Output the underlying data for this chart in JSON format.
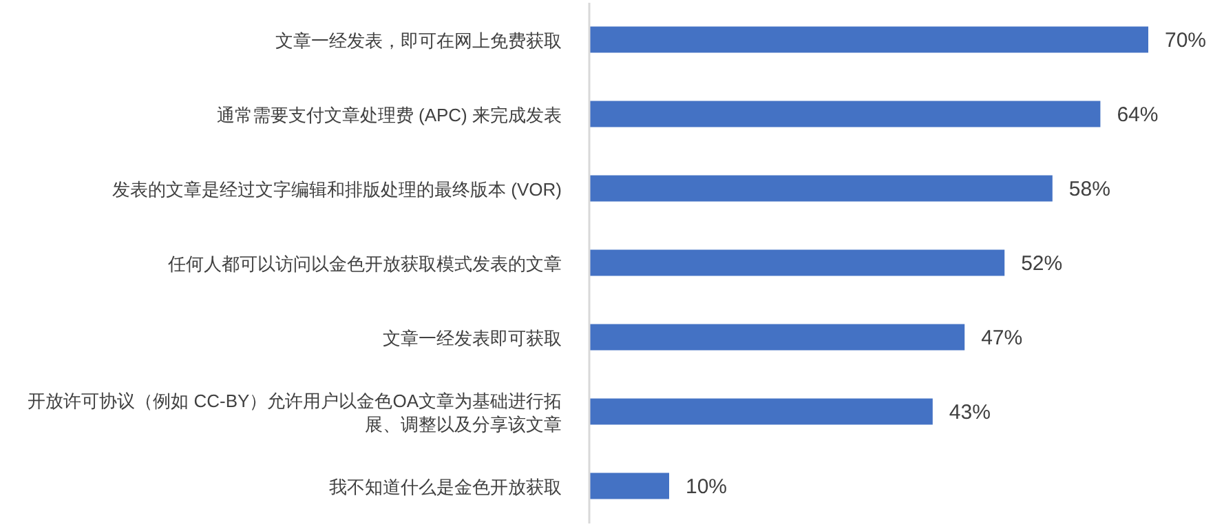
{
  "chart_data": {
    "type": "bar",
    "orientation": "horizontal",
    "categories": [
      "文章一经发表，即可在网上免费获取",
      "通常需要支付文章处理费 (APC) 来完成发表",
      "发表的文章是经过文字编辑和排版处理的最终版本 (VOR)",
      "任何人都可以访问以金色开放获取模式发表的文章",
      "文章一经发表即可获取",
      "开放许可协议（例如 CC-BY）允许用户以金色OA文章为基础进行拓展、调整以及分享该文章",
      "我不知道什么是金色开放获取"
    ],
    "values": [
      70,
      64,
      58,
      52,
      47,
      43,
      10
    ],
    "value_labels": [
      "70%",
      "64%",
      "58%",
      "52%",
      "47%",
      "43%",
      "10%"
    ],
    "color": "#4472c4",
    "tick_labels": "y",
    "grid": false,
    "legend": false
  }
}
